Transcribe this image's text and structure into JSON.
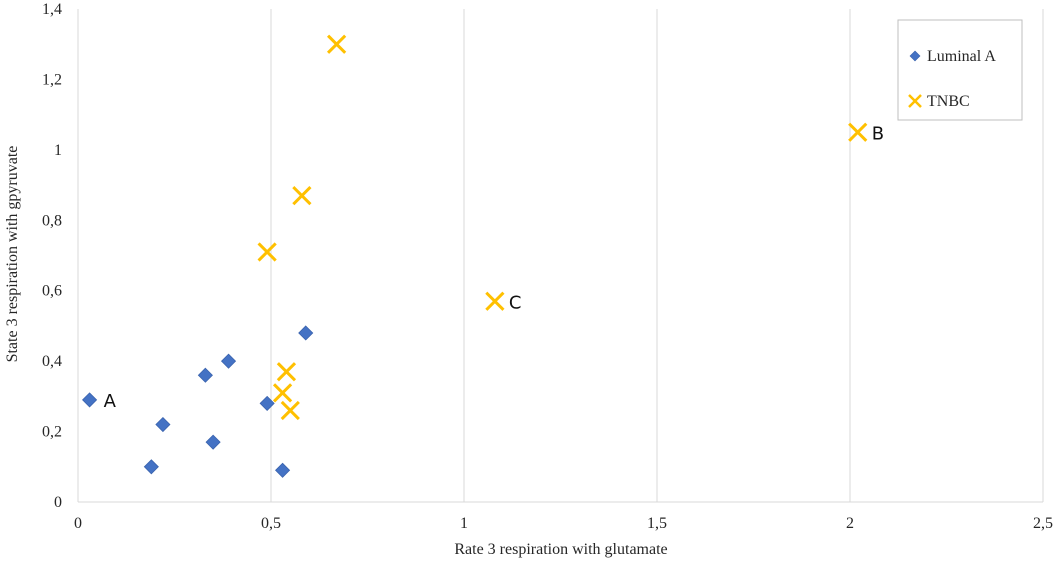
{
  "chart_data": {
    "type": "scatter",
    "title": "",
    "xlabel": "Rate 3 respiration with glutamate",
    "ylabel": "State 3 respiration with gpyruvate",
    "xlim": [
      0,
      2.5
    ],
    "ylim": [
      0,
      1.4
    ],
    "x_ticks": [
      "0",
      "0,5",
      "1",
      "1,5",
      "2",
      "2,5"
    ],
    "x_tick_values": [
      0,
      0.5,
      1,
      1.5,
      2,
      2.5
    ],
    "y_ticks": [
      "0",
      "0,2",
      "0,4",
      "0,6",
      "0,8",
      "1",
      "1,2",
      "1,4"
    ],
    "y_tick_values": [
      0,
      0.2,
      0.4,
      0.6,
      0.8,
      1,
      1.2,
      1.4
    ],
    "grid": "vertical",
    "legend_position": "top-right",
    "series": [
      {
        "name": "Luminal A",
        "marker": "diamond",
        "color": "#4472C4",
        "points": [
          {
            "x": 0.03,
            "y": 0.29
          },
          {
            "x": 0.19,
            "y": 0.1
          },
          {
            "x": 0.22,
            "y": 0.22
          },
          {
            "x": 0.33,
            "y": 0.36
          },
          {
            "x": 0.35,
            "y": 0.17
          },
          {
            "x": 0.39,
            "y": 0.4
          },
          {
            "x": 0.49,
            "y": 0.28
          },
          {
            "x": 0.53,
            "y": 0.09
          },
          {
            "x": 0.59,
            "y": 0.48
          }
        ]
      },
      {
        "name": "TNBC",
        "marker": "x",
        "color": "#FFC000",
        "points": [
          {
            "x": 0.49,
            "y": 0.71
          },
          {
            "x": 0.53,
            "y": 0.31
          },
          {
            "x": 0.54,
            "y": 0.37
          },
          {
            "x": 0.55,
            "y": 0.26
          },
          {
            "x": 0.58,
            "y": 0.87
          },
          {
            "x": 0.67,
            "y": 1.3
          },
          {
            "x": 1.08,
            "y": 0.57
          },
          {
            "x": 2.02,
            "y": 1.05
          }
        ]
      }
    ],
    "annotations": [
      {
        "text": "A",
        "x": 0.03,
        "y": 0.29
      },
      {
        "text": "B",
        "x": 2.02,
        "y": 1.05
      },
      {
        "text": "C",
        "x": 1.08,
        "y": 0.57
      }
    ]
  }
}
